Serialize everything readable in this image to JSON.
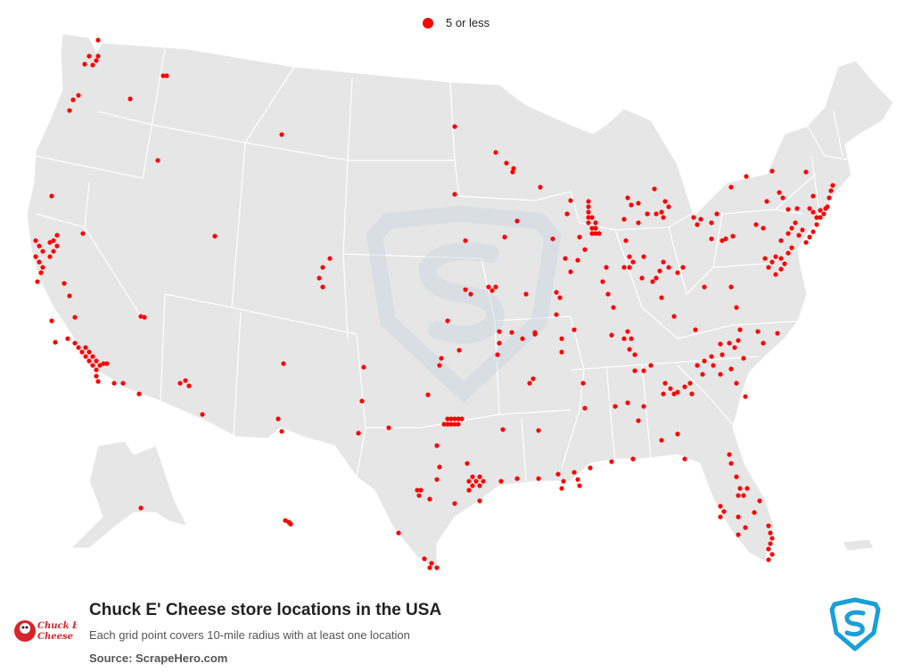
{
  "legend": {
    "label": "5 or less",
    "dot_color": "#ff0000"
  },
  "footer": {
    "title": "Chuck E' Cheese store locations in the USA",
    "subtitle": "Each grid point covers 10-mile radius with at least one location",
    "source": "Source: ScrapeHero.com",
    "brand_logo_text": "Chuck E. Cheese"
  },
  "colors": {
    "land": "#e6e6e6",
    "border": "#ffffff",
    "dot": "#ff0000",
    "watermark": "#c9d6e3",
    "brand_blue": "#1a9fd8"
  },
  "icons": {
    "watermark": "scrapehero-shield-watermark",
    "brand": "scrapehero-shield-icon",
    "logo": "chuck-e-cheese-logo"
  }
}
